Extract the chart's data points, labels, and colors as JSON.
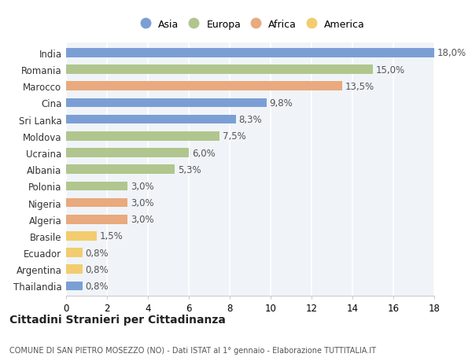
{
  "categories": [
    "India",
    "Romania",
    "Marocco",
    "Cina",
    "Sri Lanka",
    "Moldova",
    "Ucraina",
    "Albania",
    "Polonia",
    "Nigeria",
    "Algeria",
    "Brasile",
    "Ecuador",
    "Argentina",
    "Thailandia"
  ],
  "values": [
    18.0,
    15.0,
    13.5,
    9.8,
    8.3,
    7.5,
    6.0,
    5.3,
    3.0,
    3.0,
    3.0,
    1.5,
    0.8,
    0.8,
    0.8
  ],
  "labels": [
    "18,0%",
    "15,0%",
    "13,5%",
    "9,8%",
    "8,3%",
    "7,5%",
    "6,0%",
    "5,3%",
    "3,0%",
    "3,0%",
    "3,0%",
    "1,5%",
    "0,8%",
    "0,8%",
    "0,8%"
  ],
  "colors": [
    "#7b9fd4",
    "#b0c68e",
    "#e8aa7e",
    "#7b9fd4",
    "#7b9fd4",
    "#b0c68e",
    "#b0c68e",
    "#b0c68e",
    "#b0c68e",
    "#e8aa7e",
    "#e8aa7e",
    "#f2cc6e",
    "#f2cc6e",
    "#f2cc6e",
    "#7b9fd4"
  ],
  "legend_labels": [
    "Asia",
    "Europa",
    "Africa",
    "America"
  ],
  "legend_colors": [
    "#7b9fd4",
    "#b0c68e",
    "#e8aa7e",
    "#f2cc6e"
  ],
  "title": "Cittadini Stranieri per Cittadinanza",
  "subtitle": "COMUNE DI SAN PIETRO MOSEZZO (NO) - Dati ISTAT al 1° gennaio - Elaborazione TUTTITALIA.IT",
  "xlim": [
    0,
    18
  ],
  "background_color": "#ffffff",
  "plot_bg_color": "#f0f4f8",
  "bar_height": 0.55,
  "grid_color": "#ffffff",
  "label_fontsize": 8.5,
  "tick_fontsize": 8.5,
  "ylabel_color": "#555555",
  "label_color": "#555555"
}
